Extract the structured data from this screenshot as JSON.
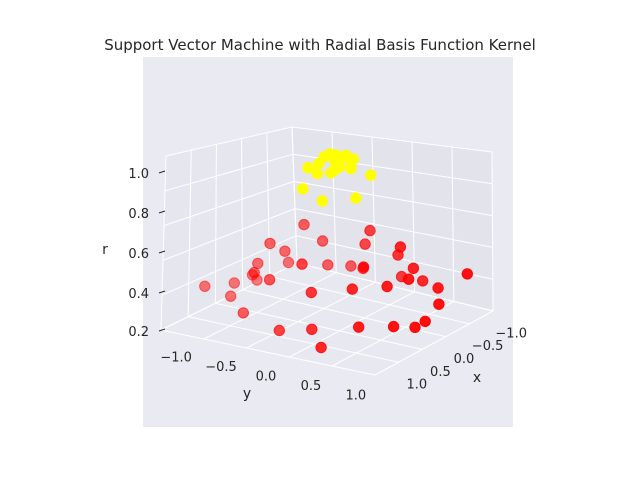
{
  "chart_data": {
    "type": "scatter",
    "projection": "3d",
    "title": "Support Vector Machine with Radial Basis Function Kernel",
    "xlabel": "x",
    "ylabel": "y",
    "zlabel": "r",
    "x_ticks": [
      "−1.0",
      "−0.5",
      "0.0",
      "0.5",
      "1.0"
    ],
    "y_ticks": [
      "−1.0",
      "−0.5",
      "0.0",
      "0.5",
      "1.0"
    ],
    "z_ticks": [
      "0.2",
      "0.4",
      "0.6",
      "0.8",
      "1.0"
    ],
    "xlim": [
      -1.2,
      1.2
    ],
    "ylim": [
      -1.2,
      1.2
    ],
    "zlim": [
      0.2,
      1.05
    ],
    "grid": true,
    "background": "#eaeaf2",
    "series": [
      {
        "color": "#ffff00",
        "points": [
          [
            0.0,
            0.0,
            1.0
          ],
          [
            0.1,
            0.05,
            0.99
          ],
          [
            -0.1,
            0.05,
            0.99
          ],
          [
            0.05,
            -0.1,
            0.99
          ],
          [
            -0.05,
            -0.1,
            0.99
          ],
          [
            0.15,
            -0.1,
            0.97
          ],
          [
            -0.15,
            0.1,
            0.97
          ],
          [
            0.2,
            0.1,
            0.96
          ],
          [
            -0.2,
            -0.05,
            0.96
          ],
          [
            0.05,
            0.2,
            0.96
          ],
          [
            0.25,
            -0.05,
            0.94
          ],
          [
            -0.25,
            0.0,
            0.94
          ],
          [
            0.1,
            -0.25,
            0.93
          ],
          [
            -0.3,
            0.2,
            0.88
          ],
          [
            0.35,
            -0.15,
            0.87
          ],
          [
            -0.3,
            -0.25,
            0.85
          ],
          [
            0.2,
            0.35,
            0.85
          ],
          [
            0.4,
            0.1,
            0.84
          ],
          [
            -0.15,
            0.05,
            0.97
          ],
          [
            0.12,
            0.12,
            0.97
          ]
        ]
      },
      {
        "color": "#ff0000",
        "points": [
          [
            0.9,
            0.3,
            0.3
          ],
          [
            1.0,
            0.0,
            0.28
          ],
          [
            0.85,
            -0.5,
            0.3
          ],
          [
            0.6,
            -0.8,
            0.32
          ],
          [
            0.3,
            -0.95,
            0.33
          ],
          [
            -0.1,
            -1.0,
            0.31
          ],
          [
            -0.5,
            -0.85,
            0.33
          ],
          [
            -0.8,
            -0.6,
            0.3
          ],
          [
            -0.95,
            -0.3,
            0.29
          ],
          [
            -1.0,
            0.1,
            0.28
          ],
          [
            -0.9,
            0.4,
            0.3
          ],
          [
            -0.7,
            0.7,
            0.32
          ],
          [
            -0.4,
            0.9,
            0.3
          ],
          [
            0.0,
            1.0,
            0.28
          ],
          [
            0.4,
            0.9,
            0.3
          ],
          [
            0.7,
            0.7,
            0.32
          ],
          [
            0.75,
            0.2,
            0.45
          ],
          [
            0.7,
            -0.3,
            0.46
          ],
          [
            0.5,
            -0.6,
            0.44
          ],
          [
            0.2,
            -0.75,
            0.43
          ],
          [
            -0.2,
            -0.7,
            0.44
          ],
          [
            -0.55,
            -0.5,
            0.46
          ],
          [
            -0.75,
            -0.15,
            0.45
          ],
          [
            -0.7,
            0.25,
            0.44
          ],
          [
            -0.5,
            0.55,
            0.43
          ],
          [
            -0.15,
            0.72,
            0.44
          ],
          [
            0.2,
            0.7,
            0.45
          ],
          [
            0.5,
            0.5,
            0.46
          ],
          [
            0.6,
            0.0,
            0.55
          ],
          [
            0.3,
            -0.55,
            0.56
          ],
          [
            -0.3,
            -0.55,
            0.57
          ],
          [
            -0.6,
            0.0,
            0.55
          ],
          [
            -0.35,
            0.5,
            0.55
          ],
          [
            0.3,
            0.5,
            0.54
          ],
          [
            1.05,
            0.5,
            0.25
          ],
          [
            -1.05,
            -0.5,
            0.27
          ],
          [
            0.1,
            0.95,
            0.26
          ],
          [
            -0.1,
            -0.95,
            0.29
          ],
          [
            0.9,
            -0.9,
            0.4
          ],
          [
            -0.9,
            0.9,
            0.38
          ]
        ]
      }
    ]
  }
}
